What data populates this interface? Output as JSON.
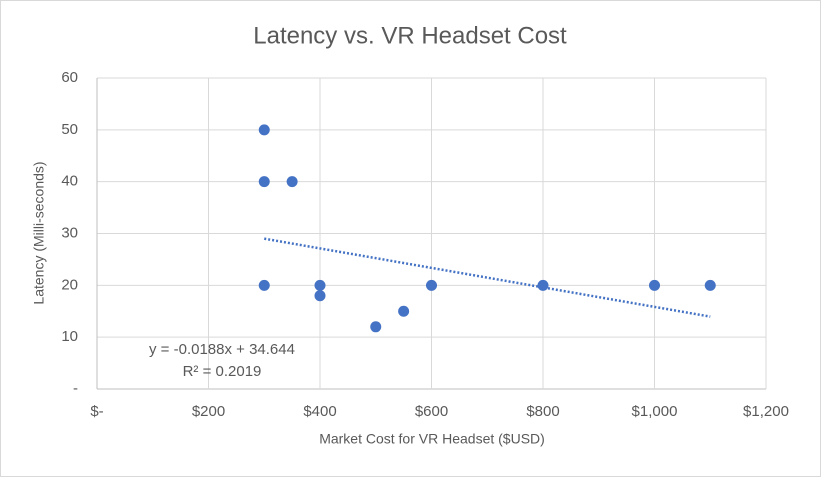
{
  "chart_data": {
    "type": "scatter",
    "title": "Latency vs. VR Headset Cost",
    "x_label": "Market Cost for VR Headset ($USD)",
    "y_label": "Latency  (Milli-seconds)",
    "x": [
      300,
      300,
      350,
      300,
      400,
      400,
      500,
      550,
      600,
      800,
      1000,
      1100
    ],
    "series": [
      {
        "name": "Latency",
        "color": "#4472c4",
        "values": [
          50,
          40,
          40,
          20,
          20,
          18,
          12,
          15,
          20,
          20,
          20,
          20
        ]
      }
    ],
    "trendline": {
      "slope": -0.0188,
      "intercept": 34.644,
      "equation": "y = -0.0188x + 34.644",
      "r2_label": "R² = 0.2019",
      "color": "#4472c4",
      "style": "dotted"
    },
    "xlim": [
      0,
      1200
    ],
    "xticks": [
      {
        "value": 0,
        "label": "$-"
      },
      {
        "value": 200,
        "label": "$200"
      },
      {
        "value": 400,
        "label": "$400"
      },
      {
        "value": 600,
        "label": "$600"
      },
      {
        "value": 800,
        "label": "$800"
      },
      {
        "value": 1000,
        "label": "$1,000"
      },
      {
        "value": 1200,
        "label": "$1,200"
      }
    ],
    "ylim": [
      0,
      60
    ],
    "yticks": [
      {
        "value": 0,
        "label": "-"
      },
      10,
      20,
      30,
      40,
      50,
      60
    ],
    "grid": true
  }
}
